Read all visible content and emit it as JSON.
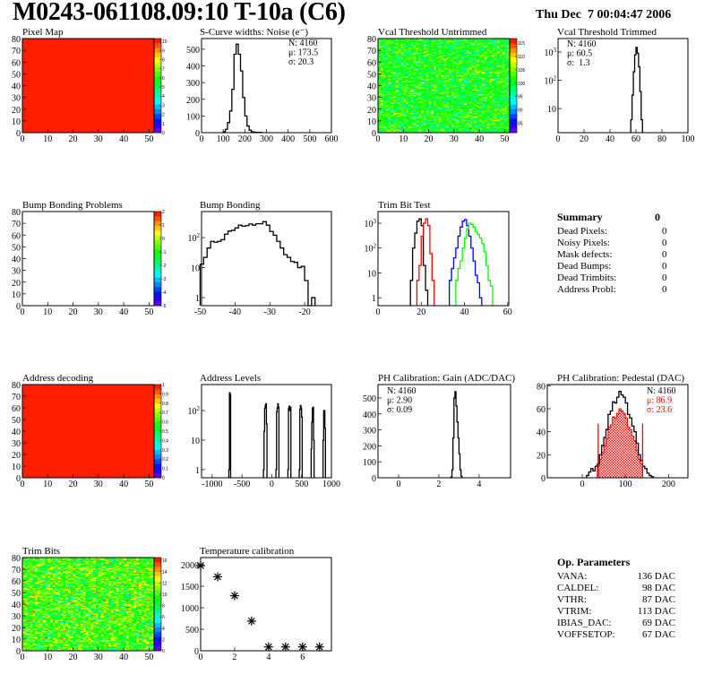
{
  "header": {
    "title": "M0243-061108.09:10 T-10a (C6)",
    "date": "Thu Dec  7 00:04:47 2006"
  },
  "summary": {
    "title": "Summary",
    "total": "0",
    "rows": [
      {
        "label": "Dead Pixels:",
        "value": "0"
      },
      {
        "label": "Noisy Pixels:",
        "value": "0"
      },
      {
        "label": "Mask defects:",
        "value": "0"
      },
      {
        "label": "Dead Bumps:",
        "value": "0"
      },
      {
        "label": "Dead Trimbits:",
        "value": "0"
      },
      {
        "label": "Address Probl:",
        "value": "0"
      }
    ]
  },
  "op_parameters": {
    "title": "Op. Parameters",
    "rows": [
      {
        "label": "VANA:",
        "value": "136 DAC"
      },
      {
        "label": "CALDEL:",
        "value": "98 DAC"
      },
      {
        "label": "VTHR:",
        "value": "87 DAC"
      },
      {
        "label": "VTRIM:",
        "value": "113 DAC"
      },
      {
        "label": "IBIAS_DAC:",
        "value": "69 DAC"
      },
      {
        "label": "VOFFSETOP:",
        "value": "67 DAC"
      }
    ]
  },
  "chart_data": [
    {
      "id": "pixel-map",
      "type": "heatmap",
      "title": "Pixel Map",
      "xlim": [
        0,
        52
      ],
      "ylim": [
        0,
        80
      ],
      "xticks": [
        0,
        10,
        20,
        30,
        40,
        50
      ],
      "yticks": [
        0,
        10,
        20,
        30,
        40,
        50,
        60,
        70,
        80
      ],
      "zlim": [
        0,
        10.3
      ],
      "zticks": [
        0,
        1,
        2,
        3,
        4,
        5,
        6,
        7,
        8,
        9,
        10
      ],
      "fill": {
        "uniform": 10
      }
    },
    {
      "id": "s-curve-noise",
      "type": "histogram",
      "title": "S-Curve widths: Noise (e⁻)",
      "xlim": [
        0,
        600
      ],
      "ylim": [
        0,
        564
      ],
      "log_y": false,
      "xticks": [
        0,
        100,
        200,
        300,
        400,
        500,
        600
      ],
      "yticks": [
        0,
        100,
        200,
        300,
        400,
        500
      ],
      "series": [
        {
          "color": "#000000",
          "x0": 100,
          "bin_width": 10,
          "values": [
            5,
            20,
            60,
            130,
            260,
            470,
            530,
            470,
            370,
            210,
            100,
            40,
            15,
            5,
            3,
            2,
            2,
            1
          ]
        }
      ],
      "stats": [
        {
          "text": "N: 4160",
          "color": "#000000"
        },
        {
          "text": "μ: 173.5",
          "color": "#000000"
        },
        {
          "text": "σ: 20.3",
          "color": "#000000"
        }
      ]
    },
    {
      "id": "vcal-threshold-untrimmed",
      "type": "heatmap",
      "title": "Vcal Threshold Untrimmed",
      "xlim": [
        0,
        52
      ],
      "ylim": [
        0,
        80
      ],
      "xticks": [
        0,
        10,
        20,
        30,
        40,
        50
      ],
      "yticks": [
        0,
        10,
        20,
        30,
        40,
        50,
        60,
        70,
        80
      ],
      "zlim": [
        81.5,
        116.7
      ],
      "zticks": [
        85,
        90,
        95,
        100,
        105,
        110,
        115
      ],
      "fill": {
        "mean": 101,
        "sigma": 3.2
      }
    },
    {
      "id": "vcal-threshold-trimmed",
      "type": "histogram",
      "title": "Vcal Threshold Trimmed",
      "xlim": [
        0,
        100
      ],
      "ylim": [
        1.4,
        3000
      ],
      "log_y": true,
      "xticks": [
        0,
        20,
        40,
        60,
        80,
        100
      ],
      "yticks": [
        10,
        100,
        1000
      ],
      "series": [
        {
          "color": "#000000",
          "x0": 56,
          "bin_width": 1,
          "values": [
            4,
            30,
            200,
            800,
            1450,
            900,
            300,
            40,
            4
          ]
        }
      ],
      "stats": [
        {
          "text": "N: 4160",
          "color": "#000000"
        },
        {
          "text": "μ: 60.5",
          "color": "#000000"
        },
        {
          "text": "σ:  1.3",
          "color": "#000000"
        }
      ]
    },
    {
      "id": "bump-bonding-problems",
      "type": "heatmap",
      "title": "Bump Bonding Problems",
      "xlim": [
        0,
        52
      ],
      "ylim": [
        0,
        80
      ],
      "xticks": [
        0,
        10,
        20,
        30,
        40,
        50
      ],
      "yticks": [
        0,
        10,
        20,
        30,
        40,
        50,
        60,
        70,
        80
      ],
      "zlim": [
        -5,
        2
      ],
      "zticks": [
        -5,
        -4,
        -3,
        -2,
        -1,
        0,
        1,
        2
      ],
      "fill": {
        "empty": true
      }
    },
    {
      "id": "bump-bonding",
      "type": "histogram",
      "title": "Bump Bonding",
      "xlim": [
        -49.6,
        -12.3
      ],
      "ylim": [
        0.54,
        740
      ],
      "log_y": true,
      "xticks": [
        -50,
        -40,
        -30,
        -20
      ],
      "yticks": [
        1,
        10,
        100
      ],
      "series": [
        {
          "color": "#000000",
          "x0": -50,
          "bin_width": 1,
          "values": [
            13,
            22,
            45,
            75,
            70,
            75,
            85,
            130,
            165,
            175,
            210,
            260,
            240,
            250,
            285,
            260,
            290,
            290,
            340,
            260,
            160,
            120,
            75,
            45,
            27,
            22,
            16,
            15,
            10,
            11,
            3.7,
            0,
            1
          ]
        }
      ]
    },
    {
      "id": "trim-bit-test",
      "type": "histogram",
      "title": "Trim Bit Test",
      "xlim": [
        0,
        60.5
      ],
      "ylim": [
        0.48,
        2950
      ],
      "log_y": true,
      "xticks": [
        0,
        20,
        40,
        60
      ],
      "yticks": [
        1,
        10,
        100,
        1000
      ],
      "series": [
        {
          "color": "#000000",
          "x0": 15,
          "bin_width": 1,
          "values": [
            5,
            100,
            400,
            1200,
            1500,
            800,
            20,
            2
          ]
        },
        {
          "color": "#ff0000",
          "x0": 18,
          "bin_width": 1,
          "values": [
            5,
            20,
            300,
            1000,
            1500,
            800,
            60,
            5
          ]
        },
        {
          "color": "#0000ff",
          "x0": 33,
          "bin_width": 1,
          "values": [
            5,
            15,
            40,
            100,
            300,
            700,
            1200,
            1400,
            800,
            300,
            100,
            30,
            8,
            4,
            1
          ]
        },
        {
          "color": "#00ff00",
          "x0": 36,
          "bin_width": 1,
          "values": [
            5,
            15,
            30,
            100,
            250,
            600,
            1000,
            900,
            700,
            450,
            350,
            250,
            150,
            70,
            20,
            5,
            3
          ]
        }
      ]
    },
    {
      "id": "address-decoding",
      "type": "heatmap",
      "title": "Address decoding",
      "xlim": [
        0,
        52
      ],
      "ylim": [
        0,
        80
      ],
      "xticks": [
        0,
        10,
        20,
        30,
        40,
        50
      ],
      "yticks": [
        0,
        10,
        20,
        30,
        40,
        50,
        60,
        70,
        80
      ],
      "zlim": [
        0,
        1
      ],
      "zticks": [
        0,
        0.1,
        0.2,
        0.3,
        0.4,
        0.5,
        0.6,
        0.7,
        0.8,
        0.9,
        1
      ],
      "fill": {
        "uniform": 1
      }
    },
    {
      "id": "address-levels",
      "type": "histogram",
      "title": "Address Levels",
      "xlim": [
        -1178,
        1000
      ],
      "ylim": [
        0.53,
        760
      ],
      "log_y": true,
      "xticks": [
        -1000,
        -500,
        0,
        500,
        1000
      ],
      "yticks": [
        1,
        10,
        100
      ],
      "series": [
        {
          "color": "#000000",
          "bin_width": 10,
          "bins": [
            [
              -720,
              1
            ],
            [
              -710,
              400
            ],
            [
              -700,
              350
            ],
            [
              -140,
              1
            ],
            [
              -130,
              20
            ],
            [
              -120,
              120
            ],
            [
              -110,
              150
            ],
            [
              -100,
              170
            ],
            [
              -90,
              35
            ],
            [
              70,
              1
            ],
            [
              80,
              90
            ],
            [
              90,
              120
            ],
            [
              100,
              170
            ],
            [
              110,
              130
            ],
            [
              270,
              1
            ],
            [
              280,
              120
            ],
            [
              290,
              140
            ],
            [
              300,
              100
            ],
            [
              310,
              130
            ],
            [
              460,
              1
            ],
            [
              470,
              110
            ],
            [
              480,
              150
            ],
            [
              490,
              120
            ],
            [
              500,
              60
            ],
            [
              660,
              5
            ],
            [
              670,
              40
            ],
            [
              680,
              120
            ],
            [
              690,
              130
            ],
            [
              700,
              10
            ],
            [
              860,
              10
            ],
            [
              870,
              100
            ],
            [
              880,
              100
            ],
            [
              890,
              25
            ]
          ]
        }
      ]
    },
    {
      "id": "ph-calibration-gain",
      "type": "histogram",
      "title": "PH Calibration: Gain (ADC/DAC)",
      "xlim": [
        -1.02,
        5.56
      ],
      "ylim": [
        0,
        584
      ],
      "log_y": false,
      "xticks": [
        0,
        2,
        4
      ],
      "yticks": [
        0,
        100,
        200,
        300,
        400,
        500
      ],
      "series": [
        {
          "color": "#000000",
          "x0": 2.6,
          "bin_width": 0.05,
          "values": [
            5,
            50,
            250,
            500,
            540,
            450,
            350,
            250,
            150,
            50,
            10
          ]
        }
      ],
      "stats": [
        {
          "text": "N: 4160",
          "color": "#000000"
        },
        {
          "text": "μ: 2.90",
          "color": "#000000"
        },
        {
          "text": "σ: 0.09",
          "color": "#000000"
        }
      ]
    },
    {
      "id": "ph-calibration-pedestal",
      "type": "histogram",
      "title": "PH Calibration: Pedestal (DAC)",
      "xlim": [
        -81,
        245
      ],
      "ylim": [
        0,
        81
      ],
      "log_y": false,
      "xticks": [
        0,
        100,
        200
      ],
      "yticks": [
        0,
        20,
        40,
        60,
        80
      ],
      "series": [
        {
          "color": "#ff0000",
          "fill": "dotted",
          "x0": 35,
          "bin_width": 5,
          "values": [
            10,
            16,
            22,
            28,
            34,
            44,
            46,
            53,
            52,
            56,
            60,
            58,
            56,
            52,
            44,
            42,
            36,
            32,
            24,
            16,
            12
          ]
        },
        {
          "color": "#000000",
          "x0": 10,
          "bin_width": 5,
          "values": [
            2,
            5,
            8,
            6,
            10,
            12,
            20,
            28,
            35,
            42,
            55,
            58,
            66,
            65,
            70,
            75,
            72,
            70,
            65,
            55,
            52,
            45,
            40,
            30,
            20,
            15,
            10,
            8,
            4,
            2,
            1
          ]
        }
      ],
      "markers": [
        {
          "x": 37,
          "y": 47,
          "color": "#ff0000"
        },
        {
          "x": 140,
          "y": 47,
          "color": "#ff0000"
        }
      ],
      "stats": [
        {
          "text": "N: 4160",
          "color": "#000000"
        },
        {
          "text": "μ: 86.9",
          "color": "#ff0000"
        },
        {
          "text": "σ: 23.6",
          "color": "#ff0000"
        }
      ]
    },
    {
      "id": "trim-bits",
      "type": "heatmap",
      "title": "Trim Bits",
      "xlim": [
        0,
        52
      ],
      "ylim": [
        0,
        80
      ],
      "xticks": [
        0,
        10,
        20,
        30,
        40,
        50
      ],
      "yticks": [
        0,
        10,
        20,
        30,
        40,
        50,
        60,
        70,
        80
      ],
      "zlim": [
        0,
        16.5
      ],
      "zticks": [
        0,
        2,
        4,
        6,
        8,
        10,
        12,
        14,
        16
      ],
      "fill": {
        "mean": 10,
        "sigma": 1.8
      }
    },
    {
      "id": "temperature-calibration",
      "type": "scatter",
      "title": "Temperature calibration",
      "xlim": [
        0,
        7.7
      ],
      "ylim": [
        0,
        2167
      ],
      "xticks": [
        0,
        2,
        4,
        6
      ],
      "yticks": [
        0,
        500,
        1000,
        1500,
        2000
      ],
      "marker": "asterisk",
      "points": [
        [
          0,
          1980
        ],
        [
          1,
          1720
        ],
        [
          2,
          1280
        ],
        [
          3,
          690
        ],
        [
          4,
          90
        ],
        [
          5,
          90
        ],
        [
          6,
          90
        ],
        [
          7,
          90
        ]
      ]
    }
  ]
}
